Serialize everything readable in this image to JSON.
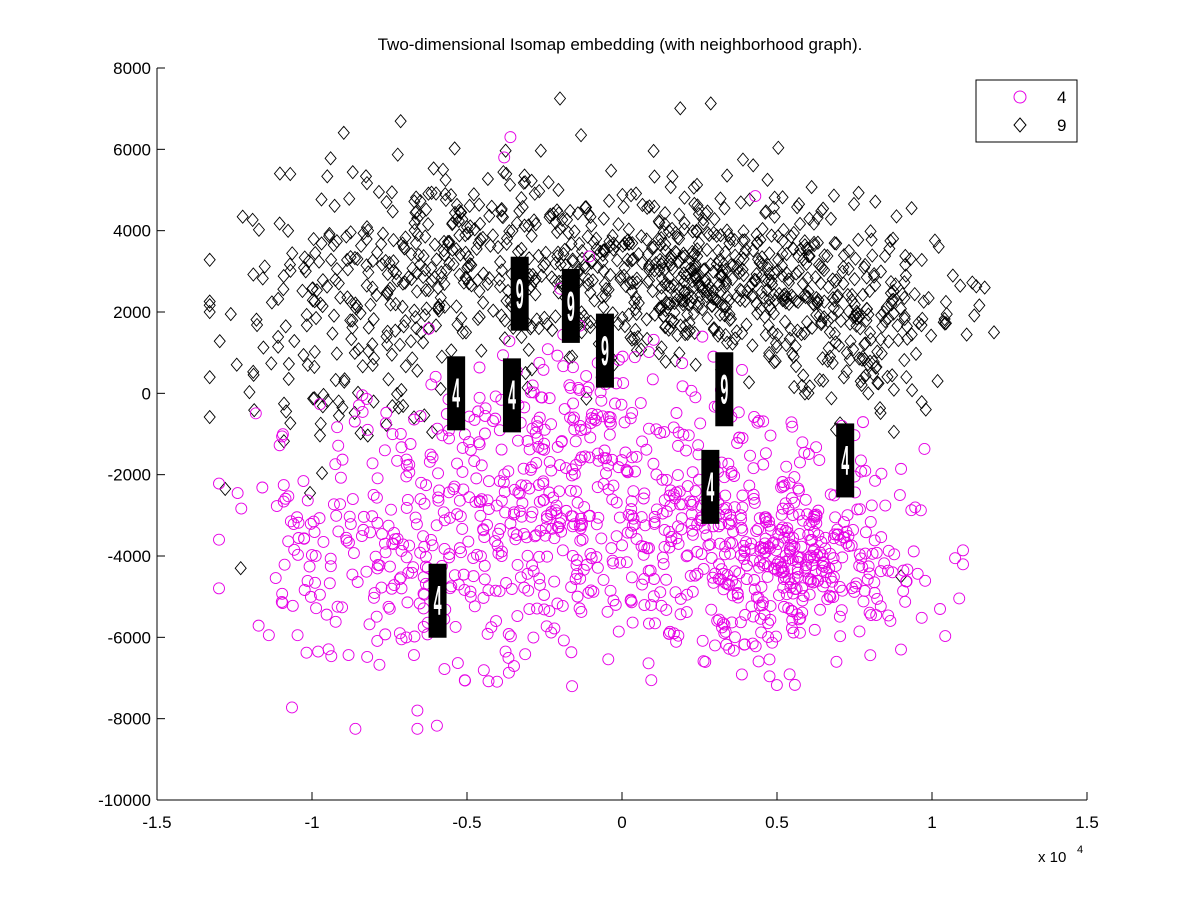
{
  "chart_data": {
    "type": "scatter",
    "title": "Two-dimensional Isomap embedding (with neighborhood graph).",
    "xlabel": "",
    "ylabel": "",
    "x_multiplier_label": "x 10",
    "x_multiplier_exponent": "4",
    "xlim": [
      -1.5,
      1.5
    ],
    "ylim": [
      -10000,
      8000
    ],
    "x_ticks": [
      -1.5,
      -1,
      -0.5,
      0,
      0.5,
      1,
      1.5
    ],
    "x_tick_labels": [
      "-1.5",
      "-1",
      "-0.5",
      "0",
      "0.5",
      "1",
      "1.5"
    ],
    "y_ticks": [
      -10000,
      -8000,
      -6000,
      -4000,
      -2000,
      0,
      2000,
      4000,
      6000,
      8000
    ],
    "y_tick_labels": [
      "-10000",
      "-8000",
      "-6000",
      "-4000",
      "-2000",
      "0",
      "2000",
      "4000",
      "6000",
      "8000"
    ],
    "grid": false,
    "legend_position": "top-right",
    "series": [
      {
        "name": "4",
        "marker": "circle",
        "color": "#e600e6",
        "cloud": {
          "count": 1150,
          "seed": 4,
          "clusters": [
            {
              "cx": 0.55,
              "cy": -4300,
              "sx": 0.18,
              "sy": 1100,
              "w": 0.26
            },
            {
              "cx": 0.2,
              "cy": -3000,
              "sx": 0.35,
              "sy": 1400,
              "w": 0.3
            },
            {
              "cx": -0.45,
              "cy": -3800,
              "sx": 0.3,
              "sy": 1700,
              "w": 0.24
            },
            {
              "cx": -0.2,
              "cy": -500,
              "sx": 0.25,
              "sy": 1200,
              "w": 0.12
            },
            {
              "cx": -0.95,
              "cy": -3500,
              "sx": 0.15,
              "sy": 1600,
              "w": 0.08
            }
          ],
          "xrange": [
            -1.3,
            1.1
          ],
          "yrange": [
            -8300,
            6400
          ]
        },
        "points": [
          [
            -0.36,
            6300
          ],
          [
            0.43,
            4850
          ],
          [
            -0.86,
            -8250
          ],
          [
            -0.66,
            -7800
          ],
          [
            -0.66,
            -8250
          ],
          [
            -0.38,
            5800
          ],
          [
            0.3,
            -6200
          ],
          [
            0.9,
            -6300
          ]
        ]
      },
      {
        "name": "9",
        "marker": "diamond",
        "color": "#000000",
        "cloud": {
          "count": 1150,
          "seed": 9,
          "clusters": [
            {
              "cx": 0.35,
              "cy": 2600,
              "sx": 0.3,
              "sy": 900,
              "w": 0.32
            },
            {
              "cx": -0.05,
              "cy": 3300,
              "sx": 0.35,
              "sy": 1200,
              "w": 0.26
            },
            {
              "cx": -0.6,
              "cy": 3400,
              "sx": 0.25,
              "sy": 1300,
              "w": 0.16
            },
            {
              "cx": 0.8,
              "cy": 1500,
              "sx": 0.15,
              "sy": 1000,
              "w": 0.12
            },
            {
              "cx": -0.9,
              "cy": 1500,
              "sx": 0.2,
              "sy": 1500,
              "w": 0.14
            }
          ],
          "xrange": [
            -1.33,
            1.2
          ],
          "yrange": [
            -4500,
            7300
          ]
        },
        "points": [
          [
            -0.2,
            7250
          ],
          [
            -1.33,
            2000
          ],
          [
            -1.28,
            -2350
          ],
          [
            -1.23,
            -4300
          ],
          [
            1.2,
            1500
          ],
          [
            1.17,
            2600
          ],
          [
            0.98,
            -400
          ],
          [
            0.9,
            -4500
          ]
        ]
      }
    ],
    "thumbnails": [
      {
        "label": "9",
        "x": -0.33,
        "y": 2450
      },
      {
        "label": "9",
        "x": -0.165,
        "y": 2150
      },
      {
        "label": "9",
        "x": -0.055,
        "y": 1050
      },
      {
        "label": "4",
        "x": -0.535,
        "y": 0
      },
      {
        "label": "4",
        "x": -0.355,
        "y": -50
      },
      {
        "label": "9",
        "x": 0.33,
        "y": 100
      },
      {
        "label": "4",
        "x": 0.72,
        "y": -1650
      },
      {
        "label": "4",
        "x": 0.285,
        "y": -2300
      },
      {
        "label": "4",
        "x": -0.595,
        "y": -5100
      }
    ]
  }
}
